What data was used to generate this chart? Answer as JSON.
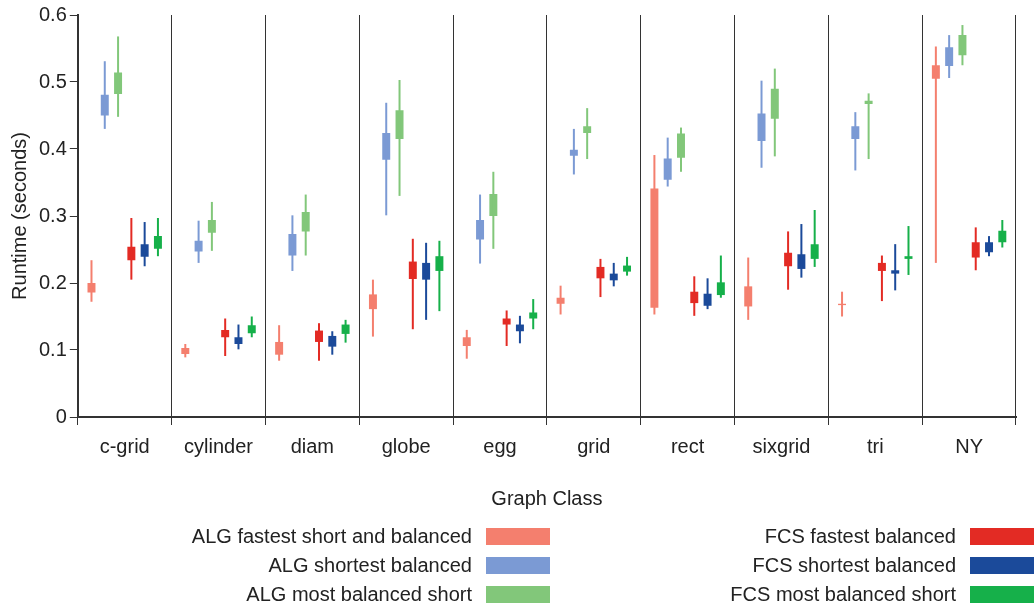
{
  "chart_data": {
    "type": "bar",
    "xlabel": "Graph Class",
    "ylabel": "Runtime (seconds)",
    "categories": [
      "c-grid",
      "cylinder",
      "diam",
      "globe",
      "egg",
      "grid",
      "rect",
      "sixgrid",
      "tri",
      "NY"
    ],
    "ylim": [
      0,
      0.6
    ],
    "yticks": [
      0,
      0.1,
      0.2,
      0.3,
      0.4,
      0.5,
      0.6
    ],
    "grid": "x",
    "legend": "bottom",
    "series": [
      {
        "name": "ALG fastest short and balanced",
        "color": "#f47f6e",
        "base": [
          0.186,
          0.094,
          0.093,
          0.161,
          0.106,
          0.169,
          0.163,
          0.165,
          0.167,
          0.505
        ],
        "values": [
          0.014,
          0.009,
          0.019,
          0.022,
          0.013,
          0.009,
          0.178,
          0.03,
          0.002,
          0.02
        ],
        "errors": [
          [
            0.172,
            0.234
          ],
          [
            0.089,
            0.109
          ],
          [
            0.084,
            0.137
          ],
          [
            0.12,
            0.205
          ],
          [
            0.087,
            0.13
          ],
          [
            0.153,
            0.196
          ],
          [
            0.153,
            0.391
          ],
          [
            0.145,
            0.238
          ],
          [
            0.15,
            0.187
          ],
          [
            0.23,
            0.553
          ]
        ]
      },
      {
        "name": "ALG shortest balanced",
        "color": "#7b9ad4",
        "base": [
          0.45,
          0.247,
          0.241,
          0.384,
          0.265,
          0.39,
          0.354,
          0.412,
          0.415,
          0.524
        ],
        "values": [
          0.031,
          0.016,
          0.032,
          0.04,
          0.029,
          0.009,
          0.032,
          0.041,
          0.019,
          0.028
        ],
        "errors": [
          [
            0.43,
            0.531
          ],
          [
            0.23,
            0.293
          ],
          [
            0.218,
            0.301
          ],
          [
            0.301,
            0.469
          ],
          [
            0.229,
            0.332
          ],
          [
            0.362,
            0.43
          ],
          [
            0.344,
            0.417
          ],
          [
            0.372,
            0.502
          ],
          [
            0.368,
            0.455
          ],
          [
            0.506,
            0.57
          ]
        ]
      },
      {
        "name": "ALG most balanced short",
        "color": "#82c77a",
        "base": [
          0.482,
          0.275,
          0.277,
          0.415,
          0.3,
          0.424,
          0.387,
          0.445,
          0.467,
          0.54
        ],
        "values": [
          0.032,
          0.019,
          0.029,
          0.043,
          0.033,
          0.01,
          0.036,
          0.045,
          0.005,
          0.03
        ],
        "errors": [
          [
            0.448,
            0.568
          ],
          [
            0.248,
            0.321
          ],
          [
            0.241,
            0.332
          ],
          [
            0.33,
            0.503
          ],
          [
            0.251,
            0.366
          ],
          [
            0.385,
            0.461
          ],
          [
            0.366,
            0.432
          ],
          [
            0.389,
            0.52
          ],
          [
            0.385,
            0.483
          ],
          [
            0.525,
            0.585
          ]
        ]
      },
      {
        "name": "FCS fastest balanced",
        "color": "#e32b24",
        "base": [
          0.234,
          0.119,
          0.112,
          0.206,
          0.138,
          0.207,
          0.17,
          0.225,
          0.218,
          0.238
        ],
        "values": [
          0.02,
          0.011,
          0.017,
          0.026,
          0.009,
          0.017,
          0.017,
          0.02,
          0.012,
          0.023
        ],
        "errors": [
          [
            0.205,
            0.297
          ],
          [
            0.091,
            0.147
          ],
          [
            0.084,
            0.14
          ],
          [
            0.131,
            0.266
          ],
          [
            0.106,
            0.159
          ],
          [
            0.179,
            0.236
          ],
          [
            0.151,
            0.21
          ],
          [
            0.19,
            0.277
          ],
          [
            0.173,
            0.241
          ],
          [
            0.219,
            0.283
          ]
        ]
      },
      {
        "name": "FCS shortest balanced",
        "color": "#1b4a9a",
        "base": [
          0.239,
          0.109,
          0.105,
          0.205,
          0.128,
          0.204,
          0.166,
          0.221,
          0.214,
          0.246
        ],
        "values": [
          0.019,
          0.01,
          0.016,
          0.025,
          0.01,
          0.01,
          0.018,
          0.022,
          0.005,
          0.015
        ],
        "errors": [
          [
            0.225,
            0.291
          ],
          [
            0.101,
            0.138
          ],
          [
            0.093,
            0.128
          ],
          [
            0.145,
            0.26
          ],
          [
            0.11,
            0.151
          ],
          [
            0.195,
            0.23
          ],
          [
            0.161,
            0.207
          ],
          [
            0.208,
            0.288
          ],
          [
            0.189,
            0.258
          ],
          [
            0.24,
            0.27
          ]
        ]
      },
      {
        "name": "FCS most balanced short",
        "color": "#16b04a",
        "base": [
          0.251,
          0.125,
          0.124,
          0.218,
          0.147,
          0.217,
          0.182,
          0.236,
          0.236,
          0.261
        ],
        "values": [
          0.019,
          0.012,
          0.014,
          0.022,
          0.009,
          0.009,
          0.019,
          0.022,
          0.004,
          0.017
        ],
        "errors": [
          [
            0.24,
            0.297
          ],
          [
            0.119,
            0.15
          ],
          [
            0.111,
            0.145
          ],
          [
            0.158,
            0.263
          ],
          [
            0.131,
            0.176
          ],
          [
            0.211,
            0.239
          ],
          [
            0.178,
            0.241
          ],
          [
            0.224,
            0.309
          ],
          [
            0.212,
            0.285
          ],
          [
            0.253,
            0.294
          ]
        ]
      }
    ]
  }
}
